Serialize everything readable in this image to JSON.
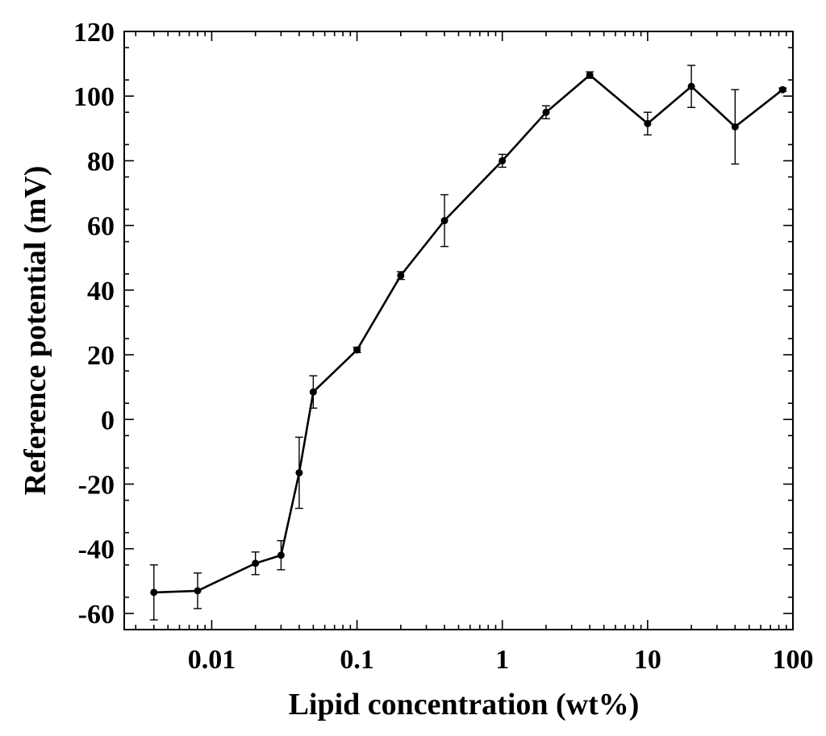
{
  "chart_data": {
    "type": "line",
    "title": "",
    "xlabel": "Lipid concentration (wt%)",
    "ylabel": "Reference potential (mV)",
    "xscale": "log",
    "xlim": [
      0.0025,
      100
    ],
    "ylim": [
      -65,
      120
    ],
    "x_ticks": [
      0.01,
      0.1,
      1,
      10,
      100
    ],
    "x_tick_labels": [
      "0.01",
      "0.1",
      "1",
      "10",
      "100"
    ],
    "y_ticks": [
      120,
      100,
      80,
      60,
      40,
      20,
      0,
      -20,
      -40,
      -60
    ],
    "y_tick_labels": [
      "120",
      "100",
      "80",
      "60",
      "40",
      "20",
      "0",
      "-20",
      "-40",
      "-60"
    ],
    "grid": false,
    "legend": "none",
    "series": [
      {
        "marker": "filled-circle",
        "color": "#000000",
        "points": [
          {
            "x": 0.004,
            "y": -53.5,
            "err": 8.5
          },
          {
            "x": 0.008,
            "y": -53.0,
            "err": 5.5
          },
          {
            "x": 0.02,
            "y": -44.5,
            "err": 3.5
          },
          {
            "x": 0.03,
            "y": -42.0,
            "err": 4.5
          },
          {
            "x": 0.04,
            "y": -16.5,
            "err": 11.0
          },
          {
            "x": 0.05,
            "y": 8.5,
            "err": 5.0
          },
          {
            "x": 0.1,
            "y": 21.5,
            "err": 0.8
          },
          {
            "x": 0.2,
            "y": 44.5,
            "err": 1.2
          },
          {
            "x": 0.4,
            "y": 61.5,
            "err": 8.0
          },
          {
            "x": 1,
            "y": 80.0,
            "err": 2.0
          },
          {
            "x": 2,
            "y": 95.0,
            "err": 2.0
          },
          {
            "x": 4,
            "y": 106.5,
            "err": 1.0
          },
          {
            "x": 10,
            "y": 91.5,
            "err": 3.5
          },
          {
            "x": 20,
            "y": 103.0,
            "err": 6.5
          },
          {
            "x": 40,
            "y": 90.5,
            "err": 11.5
          },
          {
            "x": 85,
            "y": 102.0,
            "err": 0.5
          }
        ]
      }
    ]
  }
}
